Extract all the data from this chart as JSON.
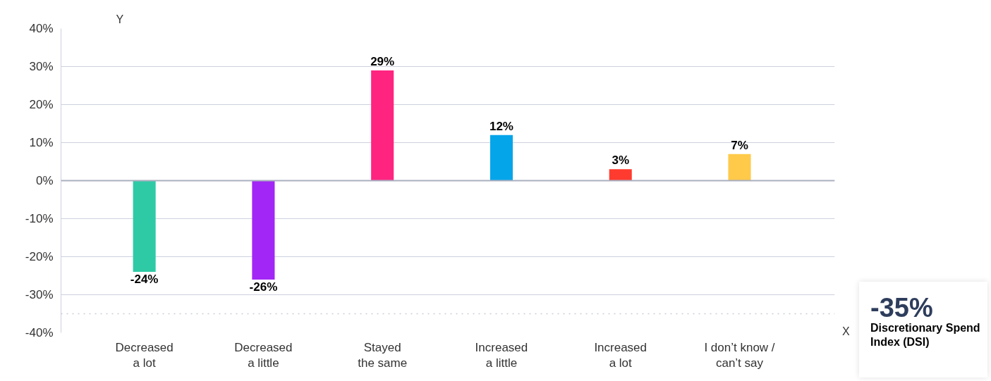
{
  "chart_data": {
    "type": "bar",
    "xlabel": "X",
    "ylabel": "Y",
    "categories": [
      "Decreased\na lot",
      "Decreased\na little",
      "Stayed\nthe same",
      "Increased\na little",
      "Increased\na lot",
      "I don’t know /\ncan’t say"
    ],
    "values": [
      -24,
      -26,
      29,
      12,
      3,
      7
    ],
    "colors": [
      "#2ecaa6",
      "#a226f5",
      "#ff2480",
      "#05a5ea",
      "#ff3b2f",
      "#ffc94a"
    ],
    "value_labels": [
      "-24%",
      "-26%",
      "29%",
      "12%",
      "3%",
      "7%"
    ],
    "ylim": [
      -40,
      40
    ],
    "yticks": [
      {
        "value": -40,
        "label": "-40%"
      },
      {
        "value": -30,
        "label": "-30%"
      },
      {
        "value": -20,
        "label": "-20%"
      },
      {
        "value": -10,
        "label": "-10%"
      },
      {
        "value": 0,
        "label": "0%"
      },
      {
        "value": 10,
        "label": "10%"
      },
      {
        "value": 20,
        "label": "20%"
      },
      {
        "value": 30,
        "label": "30%"
      },
      {
        "value": 40,
        "label": "40%"
      }
    ],
    "grid": "y",
    "ref_lines": [
      {
        "axis": "y",
        "value": -35,
        "label": "-35%",
        "color": "#c8ccd8",
        "line_style": "dotted"
      }
    ],
    "annotations": [
      "Discretionary Spend Index (DSI)"
    ]
  }
}
